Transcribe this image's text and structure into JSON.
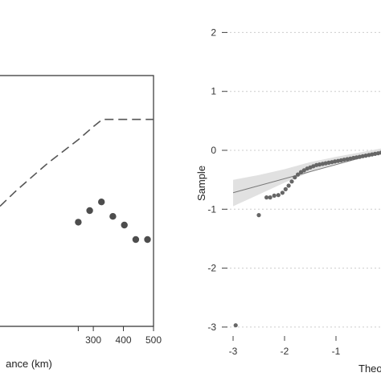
{
  "chart_data": [
    {
      "type": "scatter",
      "title": "",
      "xlabel": "ance (km)",
      "ylabel": "",
      "xlim": [
        -10,
        500
      ],
      "x_ticks": [
        "300",
        "400",
        "500"
      ],
      "x_tick_values": [
        300,
        400,
        500
      ],
      "y_ticks": [],
      "grid": false,
      "series": [
        {
          "kind": "points",
          "x": [
            250,
            288,
            327,
            365,
            403,
            441,
            480
          ],
          "y": [
            0.72,
            0.8,
            0.86,
            0.76,
            0.7,
            0.6,
            0.6
          ]
        },
        {
          "kind": "dashed-line",
          "x": [
            -10,
            40,
            100,
            150,
            200,
            250,
            300,
            330,
            360,
            410,
            460,
            500
          ],
          "y": [
            0.83,
            0.93,
            1.04,
            1.13,
            1.21,
            1.29,
            1.38,
            1.43,
            1.43,
            1.43,
            1.43,
            1.43
          ]
        }
      ]
    },
    {
      "type": "scatter",
      "title": "",
      "xlabel": "Theo",
      "ylabel": "Sample",
      "xlim": [
        -3.2,
        0.9
      ],
      "ylim": [
        -3.2,
        2.3
      ],
      "x_ticks": [
        "-3",
        "-2",
        "-1"
      ],
      "x_tick_values": [
        -3,
        -2,
        -1
      ],
      "y_ticks": [
        "2",
        "1",
        "0",
        "-1",
        "-2",
        "-3"
      ],
      "y_tick_values": [
        2,
        1,
        0,
        -1,
        -2,
        -3
      ],
      "grid": true,
      "series": [
        {
          "kind": "points",
          "x": [
            -2.95,
            -2.5,
            -2.35,
            -2.28,
            -2.2,
            -2.12,
            -2.04,
            -1.98,
            -1.92,
            -1.86,
            -1.8,
            -1.74,
            -1.68,
            -1.62,
            -1.56,
            -1.5,
            -1.44,
            -1.38,
            -1.32,
            -1.26,
            -1.2,
            -1.14,
            -1.08,
            -1.02,
            -0.96,
            -0.9,
            -0.84,
            -0.78,
            -0.72,
            -0.66,
            -0.6,
            -0.54,
            -0.48,
            -0.42,
            -0.36,
            -0.3,
            -0.24,
            -0.18,
            -0.12,
            -0.06,
            0.0,
            0.06
          ],
          "y": [
            -2.97,
            -1.1,
            -0.8,
            -0.8,
            -0.77,
            -0.76,
            -0.72,
            -0.66,
            -0.6,
            -0.53,
            -0.46,
            -0.41,
            -0.37,
            -0.34,
            -0.31,
            -0.29,
            -0.27,
            -0.25,
            -0.24,
            -0.23,
            -0.22,
            -0.21,
            -0.2,
            -0.19,
            -0.18,
            -0.17,
            -0.16,
            -0.15,
            -0.14,
            -0.13,
            -0.12,
            -0.11,
            -0.1,
            -0.09,
            -0.08,
            -0.07,
            -0.06,
            -0.05,
            -0.04,
            -0.03,
            -0.02,
            -0.01
          ]
        },
        {
          "kind": "reference-line",
          "x": [
            -3.0,
            0.1
          ],
          "y": [
            -0.72,
            0.02
          ]
        },
        {
          "kind": "confidence-band",
          "x": [
            -3.0,
            -2.5,
            -2.0,
            -1.5,
            -1.0,
            -0.5,
            0.0,
            0.1
          ],
          "upper": [
            -0.5,
            -0.42,
            -0.32,
            -0.2,
            -0.11,
            -0.03,
            0.05,
            0.07
          ],
          "lower": [
            -0.95,
            -0.75,
            -0.55,
            -0.37,
            -0.23,
            -0.11,
            -0.02,
            -0.01
          ]
        }
      ]
    }
  ]
}
